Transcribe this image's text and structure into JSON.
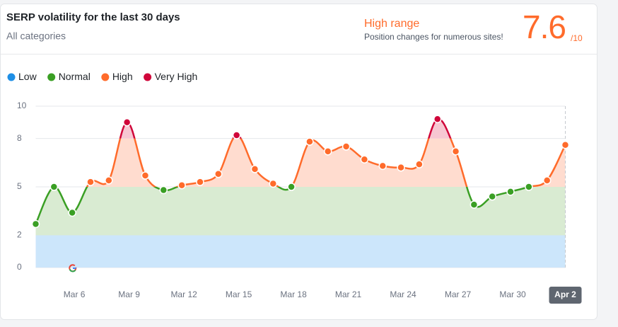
{
  "chart_data": {
    "type": "line",
    "title": "SERP volatility for the last 30 days",
    "subtitle": "All categories",
    "range_label": "High range",
    "range_note": "Position changes for numerous sites!",
    "score": 7.6,
    "score_max_label": "/10",
    "bands": [
      {
        "name": "Low",
        "from": 0,
        "to": 2,
        "color": "#1e8fe6",
        "fill": "#cce6fb"
      },
      {
        "name": "Normal",
        "from": 2,
        "to": 5,
        "color": "#3a9f24",
        "fill": "#d9ebd2"
      },
      {
        "name": "High",
        "from": 5,
        "to": 8,
        "color": "#ff6b2b",
        "fill": "#ffdccf"
      },
      {
        "name": "Very High",
        "from": 8,
        "to": 10,
        "color": "#d0063a",
        "fill": "#f7c7d2"
      }
    ],
    "categories": [
      null,
      null,
      "Mar 6",
      null,
      null,
      "Mar 9",
      null,
      null,
      "Mar 12",
      null,
      null,
      "Mar 15",
      null,
      null,
      "Mar 18",
      null,
      null,
      "Mar 21",
      null,
      null,
      "Mar 24",
      null,
      null,
      "Mar 27",
      null,
      null,
      "Mar 30",
      null,
      null,
      "Apr 2"
    ],
    "values": [
      2.7,
      5.0,
      3.4,
      5.3,
      5.4,
      9.0,
      5.7,
      4.8,
      5.1,
      5.3,
      5.8,
      8.2,
      6.1,
      5.2,
      5.0,
      7.8,
      7.2,
      7.5,
      6.7,
      6.3,
      6.2,
      6.4,
      9.2,
      7.2,
      3.9,
      4.4,
      4.7,
      5.0,
      5.4,
      7.6
    ],
    "ylim": [
      0,
      10
    ],
    "yticks": [
      0,
      2,
      5,
      8,
      10
    ],
    "grid": true
  }
}
